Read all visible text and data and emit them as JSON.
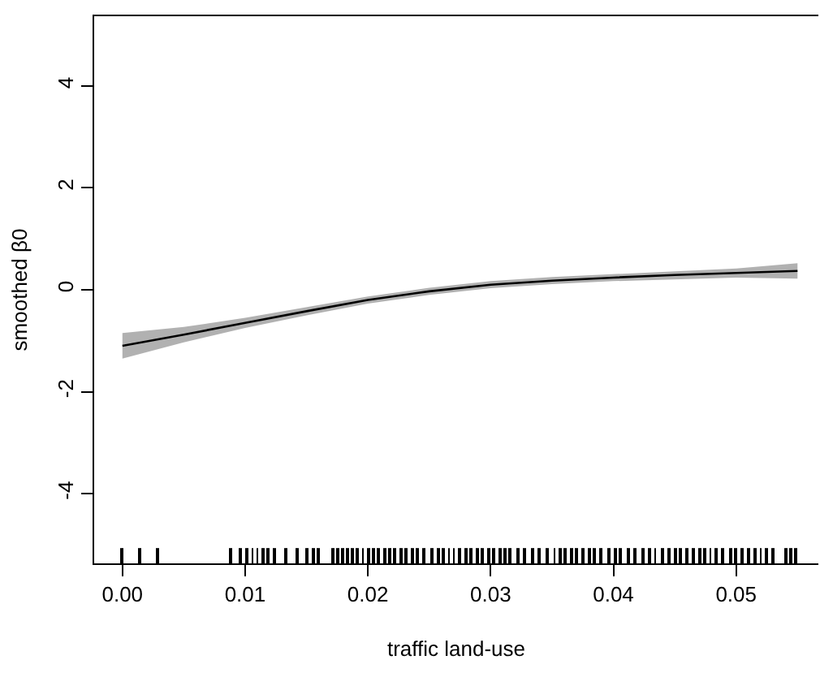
{
  "chart_data": {
    "type": "line",
    "xlabel": "traffic land-use",
    "ylabel": "smoothed β0",
    "xlim": [
      -0.0023,
      0.0567
    ],
    "ylim": [
      -5.37,
      5.37
    ],
    "xticks": [
      {
        "value": 0,
        "label": "0.00"
      },
      {
        "value": 0.01,
        "label": "0.01"
      },
      {
        "value": 0.02,
        "label": "0.02"
      },
      {
        "value": 0.03,
        "label": "0.03"
      },
      {
        "value": 0.04,
        "label": "0.04"
      },
      {
        "value": 0.05,
        "label": "0.05"
      }
    ],
    "yticks": [
      -4,
      -2,
      0,
      2,
      4
    ],
    "series": [
      {
        "color": "#000000",
        "marker": "none",
        "line_style": "solid",
        "x": [
          0,
          0.005,
          0.01,
          0.015,
          0.02,
          0.025,
          0.03,
          0.035,
          0.04,
          0.045,
          0.05,
          0.055
        ],
        "values": [
          -1.1,
          -0.88,
          -0.65,
          -0.42,
          -0.2,
          -0.03,
          0.1,
          0.18,
          0.24,
          0.29,
          0.33,
          0.37
        ],
        "lower": [
          -1.35,
          -1.03,
          -0.75,
          -0.5,
          -0.27,
          -0.1,
          0.03,
          0.11,
          0.17,
          0.21,
          0.24,
          0.22
        ],
        "upper": [
          -0.85,
          -0.73,
          -0.55,
          -0.34,
          -0.13,
          0.04,
          0.17,
          0.25,
          0.31,
          0.37,
          0.42,
          0.52
        ]
      },
      {
        "type": "bar",
        "color": "#000000",
        "base": [
          -5.37,
          -5.37,
          -5.37,
          -5.37,
          -5.37,
          -5.37,
          -5.37,
          -5.37,
          -5.37,
          -5.37,
          -5.37,
          -5.37,
          -5.37,
          -5.37,
          -5.37,
          -5.37,
          -5.37,
          -5.37,
          -5.37,
          -5.37,
          -5.37,
          -5.37,
          -5.37,
          -5.37,
          -5.37,
          -5.37,
          -5.37,
          -5.37,
          -5.37,
          -5.37,
          -5.37,
          -5.37,
          -5.37,
          -5.37,
          -5.37,
          -5.37,
          -5.37,
          -5.37,
          -5.37,
          -5.37,
          -5.37,
          -5.37,
          -5.37,
          -5.37,
          -5.37,
          -5.37,
          -5.37,
          -5.37,
          -5.37,
          -5.37,
          -5.37,
          -5.37,
          -5.37,
          -5.37,
          -5.37,
          -5.37,
          -5.37,
          -5.37,
          -5.37,
          -5.37,
          -5.37,
          -5.37,
          -5.37,
          -5.37,
          -5.37,
          -5.37,
          -5.37,
          -5.37,
          -5.37,
          -5.37,
          -5.37,
          -5.37,
          -5.37,
          -5.37,
          -5.37,
          -5.37,
          -5.37,
          -5.37,
          -5.37,
          -5.37,
          -5.37,
          -5.37,
          -5.37,
          -5.37,
          -5.37,
          -5.37,
          -5.37,
          -5.37,
          -5.37,
          -5.37,
          -5.37,
          -5.37,
          -5.37
        ],
        "x": [
          0,
          0.0014,
          0.0028,
          0.0088,
          0.0096,
          0.0101,
          0.0106,
          0.011,
          0.0115,
          0.0119,
          0.0124,
          0.0133,
          0.0142,
          0.015,
          0.0155,
          0.016,
          0.0171,
          0.0175,
          0.0179,
          0.0183,
          0.0187,
          0.0191,
          0.0196,
          0.02,
          0.0205,
          0.0209,
          0.0214,
          0.0218,
          0.0222,
          0.0227,
          0.0231,
          0.0236,
          0.024,
          0.0245,
          0.0252,
          0.0257,
          0.0261,
          0.0266,
          0.027,
          0.0275,
          0.028,
          0.0284,
          0.0289,
          0.0293,
          0.0298,
          0.0303,
          0.0308,
          0.0312,
          0.0316,
          0.0322,
          0.0328,
          0.0334,
          0.034,
          0.0346,
          0.0352,
          0.0357,
          0.0361,
          0.0366,
          0.037,
          0.0375,
          0.038,
          0.0384,
          0.039,
          0.0396,
          0.0402,
          0.0406,
          0.0412,
          0.0418,
          0.0424,
          0.043,
          0.0434,
          0.044,
          0.0445,
          0.045,
          0.0455,
          0.046,
          0.0465,
          0.047,
          0.0474,
          0.0479,
          0.0484,
          0.0489,
          0.0495,
          0.05,
          0.0505,
          0.051,
          0.0515,
          0.052,
          0.0525,
          0.053,
          0.054,
          0.0544,
          0.0548
        ],
        "values": [
          0.3,
          0.3,
          0.3,
          0.3,
          0.3,
          0.3,
          0.3,
          0.3,
          0.3,
          0.3,
          0.3,
          0.3,
          0.3,
          0.3,
          0.3,
          0.3,
          0.3,
          0.3,
          0.3,
          0.3,
          0.3,
          0.3,
          0.3,
          0.3,
          0.3,
          0.3,
          0.3,
          0.3,
          0.3,
          0.3,
          0.3,
          0.3,
          0.3,
          0.3,
          0.3,
          0.3,
          0.3,
          0.3,
          0.3,
          0.3,
          0.3,
          0.3,
          0.3,
          0.3,
          0.3,
          0.3,
          0.3,
          0.3,
          0.3,
          0.3,
          0.3,
          0.3,
          0.3,
          0.3,
          0.3,
          0.3,
          0.3,
          0.3,
          0.3,
          0.3,
          0.3,
          0.3,
          0.3,
          0.3,
          0.3,
          0.3,
          0.3,
          0.3,
          0.3,
          0.3,
          0.3,
          0.3,
          0.3,
          0.3,
          0.3,
          0.3,
          0.3,
          0.3,
          0.3,
          0.3,
          0.3,
          0.3,
          0.3,
          0.3,
          0.3,
          0.3,
          0.3,
          0.3,
          0.3,
          0.3,
          0.3,
          0.3,
          0.3
        ]
      }
    ]
  }
}
